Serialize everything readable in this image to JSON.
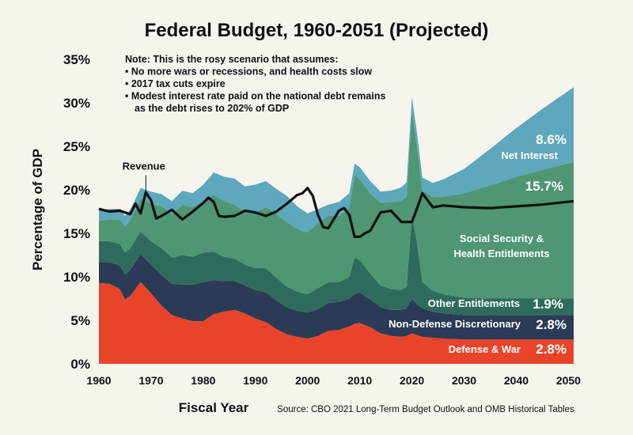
{
  "chart_data": {
    "type": "area",
    "title": "Federal Budget, 1960-2051 (Projected)",
    "xlabel": "Fiscal Year",
    "ylabel": "Percentage of GDP",
    "source": "Source: CBO 2021 Long-Term Budget Outlook and OMB Historical Tables",
    "xlim": [
      1960,
      2051
    ],
    "ylim": [
      0,
      35
    ],
    "x_ticks": [
      1960,
      1970,
      1980,
      1990,
      2000,
      2010,
      2020,
      2030,
      2040,
      2050
    ],
    "y_ticks": [
      {
        "value": 0,
        "label": "0%"
      },
      {
        "value": 5,
        "label": "5%"
      },
      {
        "value": 10,
        "label": "10%"
      },
      {
        "value": 15,
        "label": "15%"
      },
      {
        "value": 20,
        "label": "20%"
      },
      {
        "value": 25,
        "label": "25%"
      },
      {
        "value": 30,
        "label": "30%"
      },
      {
        "value": 35,
        "label": "35%"
      }
    ],
    "grid": false,
    "note": [
      "Note: This is the rosy scenario that assumes:",
      "• No more wars or recessions, and health costs slow",
      "• 2017 tax cuts expire",
      "• Modest interest rate paid on the national debt remains",
      "  as the debt rises to 202% of GDP"
    ],
    "x": [
      1960,
      1962,
      1964,
      1965,
      1966,
      1968,
      1970,
      1972,
      1974,
      1976,
      1978,
      1980,
      1982,
      1984,
      1986,
      1988,
      1990,
      1992,
      1994,
      1996,
      1998,
      2000,
      2002,
      2004,
      2006,
      2008,
      2009,
      2010,
      2012,
      2014,
      2016,
      2018,
      2019,
      2020,
      2021,
      2022,
      2024,
      2026,
      2030,
      2035,
      2040,
      2045,
      2051
    ],
    "series": [
      {
        "name": "Defense & War",
        "label_value": "2.8%",
        "color": "#e8442a",
        "values": [
          9.3,
          9.2,
          8.6,
          7.4,
          7.8,
          9.4,
          8.1,
          6.7,
          5.6,
          5.2,
          4.9,
          4.9,
          5.7,
          6.0,
          6.2,
          5.8,
          5.2,
          4.8,
          4.0,
          3.4,
          3.1,
          2.9,
          3.2,
          3.8,
          3.9,
          4.3,
          4.6,
          4.7,
          4.2,
          3.5,
          3.2,
          3.1,
          3.2,
          3.5,
          3.3,
          3.1,
          3.0,
          2.9,
          2.8,
          2.8,
          2.8,
          2.8,
          2.8
        ]
      },
      {
        "name": "Non-Defense Discretionary",
        "label_value": "2.8%",
        "color": "#2b3a55",
        "values": [
          2.4,
          2.5,
          2.7,
          2.9,
          3.0,
          3.2,
          3.3,
          3.5,
          3.6,
          3.9,
          4.2,
          4.5,
          3.9,
          3.5,
          3.3,
          3.2,
          3.3,
          3.4,
          3.3,
          3.1,
          3.0,
          3.0,
          3.1,
          3.2,
          3.2,
          3.2,
          3.4,
          3.5,
          3.2,
          3.0,
          3.0,
          3.1,
          3.2,
          4.0,
          3.5,
          3.3,
          3.0,
          2.9,
          2.8,
          2.8,
          2.8,
          2.8,
          2.8
        ]
      },
      {
        "name": "Other Entitlements",
        "label_value": "1.9%",
        "color": "#2f6b5c",
        "values": [
          2.4,
          2.4,
          2.5,
          2.5,
          2.5,
          2.6,
          2.7,
          3.1,
          3.0,
          3.4,
          3.2,
          3.4,
          3.3,
          2.8,
          2.6,
          2.4,
          2.5,
          2.8,
          2.6,
          2.4,
          2.2,
          2.1,
          2.4,
          2.4,
          2.3,
          2.5,
          4.2,
          3.7,
          3.0,
          2.5,
          2.4,
          2.3,
          2.5,
          9.6,
          7.0,
          3.0,
          2.4,
          2.2,
          2.0,
          1.9,
          1.9,
          1.9,
          1.9
        ]
      },
      {
        "name": "Social Security & Health Entitlements",
        "label_value": "15.7%",
        "color": "#4f9673",
        "values": [
          2.3,
          2.5,
          2.8,
          3.0,
          3.2,
          3.8,
          4.3,
          4.8,
          5.0,
          5.8,
          5.7,
          5.9,
          6.5,
          6.4,
          6.2,
          6.1,
          6.4,
          7.0,
          7.3,
          7.4,
          7.2,
          7.1,
          7.5,
          7.6,
          7.6,
          7.9,
          9.5,
          9.3,
          9.2,
          9.5,
          10.0,
          10.2,
          10.3,
          12.0,
          11.0,
          10.5,
          10.8,
          11.2,
          12.0,
          13.0,
          14.0,
          14.8,
          15.7
        ]
      },
      {
        "name": "Net Interest",
        "label_value": "8.6%",
        "color": "#5da8bc",
        "values": [
          1.3,
          1.2,
          1.2,
          1.2,
          1.2,
          1.2,
          1.4,
          1.4,
          1.5,
          1.6,
          1.6,
          1.9,
          2.6,
          2.8,
          3.0,
          2.9,
          3.2,
          3.0,
          2.9,
          3.0,
          2.6,
          2.2,
          1.6,
          1.3,
          1.6,
          1.7,
          1.3,
          1.4,
          1.4,
          1.3,
          1.3,
          1.6,
          1.7,
          1.6,
          1.6,
          1.5,
          1.6,
          2.0,
          2.8,
          4.2,
          5.6,
          7.0,
          8.6
        ]
      }
    ],
    "revenue": {
      "name": "Revenue",
      "color": "#111111",
      "x": [
        1960,
        1962,
        1964,
        1966,
        1967,
        1968,
        1969,
        1970,
        1971,
        1972,
        1974,
        1976,
        1978,
        1980,
        1981,
        1982,
        1983,
        1984,
        1986,
        1988,
        1990,
        1992,
        1994,
        1996,
        1998,
        1999,
        2000,
        2001,
        2002,
        2003,
        2004,
        2006,
        2007,
        2008,
        2009,
        2010,
        2011,
        2012,
        2014,
        2016,
        2018,
        2019,
        2020,
        2021,
        2022,
        2024,
        2026,
        2030,
        2035,
        2040,
        2045,
        2051
      ],
      "values": [
        17.8,
        17.5,
        17.6,
        17.2,
        18.4,
        17.3,
        19.7,
        18.8,
        16.7,
        17.0,
        17.7,
        16.6,
        17.5,
        18.5,
        19.1,
        18.6,
        17.0,
        16.9,
        17.0,
        17.6,
        17.4,
        17.0,
        17.5,
        18.4,
        19.4,
        19.6,
        20.2,
        19.3,
        17.1,
        15.7,
        15.6,
        17.6,
        17.9,
        17.1,
        14.6,
        14.6,
        15.0,
        15.3,
        17.4,
        17.6,
        16.3,
        16.3,
        16.3,
        17.9,
        19.6,
        18.0,
        18.2,
        18.0,
        17.9,
        18.1,
        18.3,
        18.7
      ]
    },
    "revenue_label": "Revenue"
  }
}
